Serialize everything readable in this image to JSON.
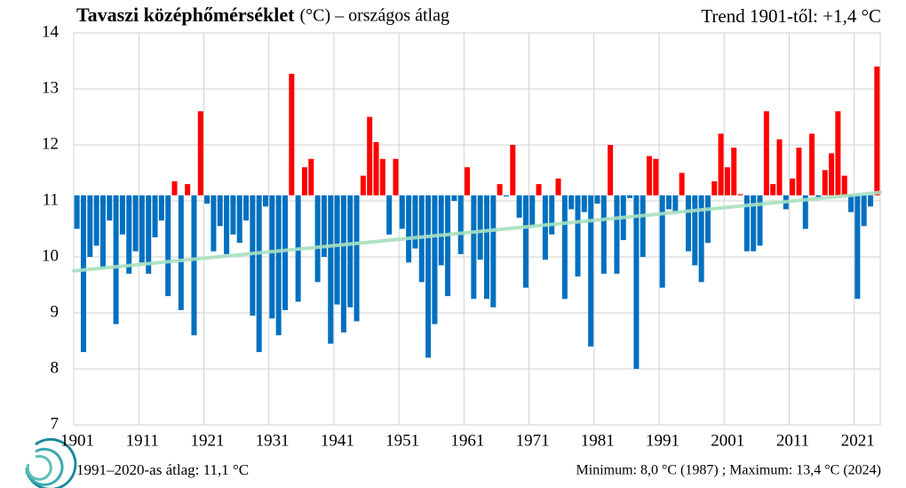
{
  "chart_data": {
    "type": "bar",
    "title": "Tavaszi középhőmérséklet",
    "subtitle": "(°C) – országos átlag",
    "annotation": "Trend 1901-től: +1,4 °C",
    "footnote_left": "1991–2020-as átlag: 11,1 °C",
    "footnote_right": "Minimum:  8,0 °C (1987) ; Maximum:  13,4 °C (2024)",
    "baseline": 11.1,
    "x": [
      1901,
      1902,
      1903,
      1904,
      1905,
      1906,
      1907,
      1908,
      1909,
      1910,
      1911,
      1912,
      1913,
      1914,
      1915,
      1916,
      1917,
      1918,
      1919,
      1920,
      1921,
      1922,
      1923,
      1924,
      1925,
      1926,
      1927,
      1928,
      1929,
      1930,
      1931,
      1932,
      1933,
      1934,
      1935,
      1936,
      1937,
      1938,
      1939,
      1940,
      1941,
      1942,
      1943,
      1944,
      1945,
      1946,
      1947,
      1948,
      1949,
      1950,
      1951,
      1952,
      1953,
      1954,
      1955,
      1956,
      1957,
      1958,
      1959,
      1960,
      1961,
      1962,
      1963,
      1964,
      1965,
      1966,
      1967,
      1968,
      1969,
      1970,
      1971,
      1972,
      1973,
      1974,
      1975,
      1976,
      1977,
      1978,
      1979,
      1980,
      1981,
      1982,
      1983,
      1984,
      1985,
      1986,
      1987,
      1988,
      1989,
      1990,
      1991,
      1992,
      1993,
      1994,
      1995,
      1996,
      1997,
      1998,
      1999,
      2000,
      2001,
      2002,
      2003,
      2004,
      2005,
      2006,
      2007,
      2008,
      2009,
      2010,
      2011,
      2012,
      2013,
      2014,
      2015,
      2016,
      2017,
      2018,
      2019,
      2020,
      2021,
      2022,
      2023,
      2024
    ],
    "values": [
      10.5,
      8.3,
      10.0,
      10.2,
      9.8,
      10.65,
      8.8,
      10.4,
      9.7,
      10.1,
      9.9,
      9.7,
      10.35,
      10.65,
      9.3,
      11.35,
      9.05,
      11.3,
      8.6,
      12.6,
      10.95,
      10.1,
      10.55,
      10.05,
      10.4,
      10.25,
      10.65,
      8.95,
      8.3,
      10.9,
      8.9,
      8.6,
      9.05,
      13.27,
      9.2,
      11.6,
      11.75,
      9.55,
      10.0,
      8.45,
      9.15,
      8.65,
      9.1,
      8.85,
      11.45,
      12.5,
      12.05,
      11.75,
      10.4,
      11.75,
      10.5,
      9.9,
      10.15,
      9.55,
      8.2,
      8.8,
      9.85,
      9.3,
      11.0,
      10.05,
      11.6,
      9.25,
      9.95,
      9.25,
      9.1,
      11.3,
      11.08,
      12.0,
      10.7,
      9.45,
      10.55,
      11.3,
      9.95,
      10.4,
      11.4,
      9.25,
      10.85,
      9.65,
      10.8,
      8.4,
      10.95,
      9.7,
      12.0,
      9.7,
      10.3,
      11.05,
      8.0,
      10.0,
      11.8,
      11.75,
      9.45,
      10.85,
      10.8,
      11.5,
      10.1,
      9.85,
      9.55,
      10.25,
      11.35,
      12.2,
      11.6,
      11.95,
      11.12,
      10.1,
      10.1,
      10.2,
      12.6,
      11.3,
      12.1,
      10.85,
      11.4,
      11.95,
      10.5,
      12.2,
      11.05,
      11.55,
      11.85,
      12.6,
      11.45,
      10.8,
      9.25,
      10.55,
      10.9,
      13.4
    ],
    "colors": {
      "above": "#ff0000",
      "below": "#0070c0"
    },
    "trend": {
      "x": [
        1901,
        2024
      ],
      "values": [
        9.75,
        11.15
      ],
      "color": "#a8e0c0"
    },
    "xlim": [
      1901,
      2025
    ],
    "xticks": [
      1901,
      1911,
      1921,
      1931,
      1941,
      1951,
      1961,
      1971,
      1981,
      1991,
      2001,
      2011,
      2021
    ],
    "ylim": [
      7,
      14
    ],
    "yticks": [
      7,
      8,
      9,
      10,
      11,
      12,
      13,
      14
    ],
    "grid": true
  }
}
